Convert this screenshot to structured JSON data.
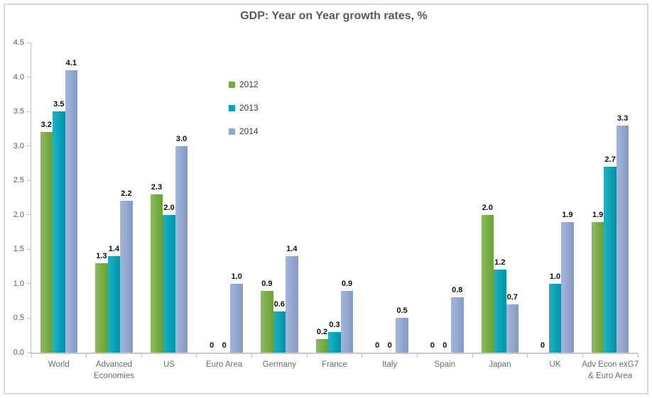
{
  "chart_data": {
    "type": "bar",
    "title": "GDP: Year on Year growth rates, %",
    "categories": [
      "World",
      "Advanced Economies",
      "US",
      "Euro Area",
      "Germany",
      "France",
      "Italy",
      "Spain",
      "Japan",
      "UK",
      "Adv Econ exG7 & Euro Area"
    ],
    "series": [
      {
        "name": "2012",
        "color": "#76AC40",
        "color_light": "#8CBD58",
        "color_dark": "#69A038",
        "values": [
          3.2,
          1.3,
          2.3,
          0,
          0.9,
          0.2,
          0,
          0,
          2.0,
          0,
          1.9
        ]
      },
      {
        "name": "2013",
        "color": "#00A3B8",
        "color_light": "#1CB2C6",
        "color_dark": "#0092A8",
        "values": [
          3.5,
          1.4,
          2.0,
          0,
          0.6,
          0.3,
          0,
          0,
          1.2,
          1.0,
          2.7
        ]
      },
      {
        "name": "2014",
        "color": "#92A8D1",
        "color_light": "#A3B6DC",
        "color_dark": "#8499C4",
        "values": [
          4.1,
          2.2,
          3.0,
          1.0,
          1.4,
          0.9,
          0.5,
          0.8,
          0.7,
          1.9,
          3.3
        ]
      }
    ],
    "xlabel": "",
    "ylabel": "",
    "ylim": [
      0,
      4.5
    ],
    "ytick_step": 0.5,
    "ytick_labels": [
      "0.0",
      "0.5",
      "1.0",
      "1.5",
      "2.0",
      "2.5",
      "3.0",
      "3.5",
      "4.0",
      "4.5"
    ],
    "grid": false,
    "legend_position": "inside top-left of plot, vertical",
    "data_labels": "outside end, zeros shown as 0",
    "axis_color": "#BFBFBF",
    "text_color": "#595959",
    "label_color": "#0d0d0d"
  }
}
